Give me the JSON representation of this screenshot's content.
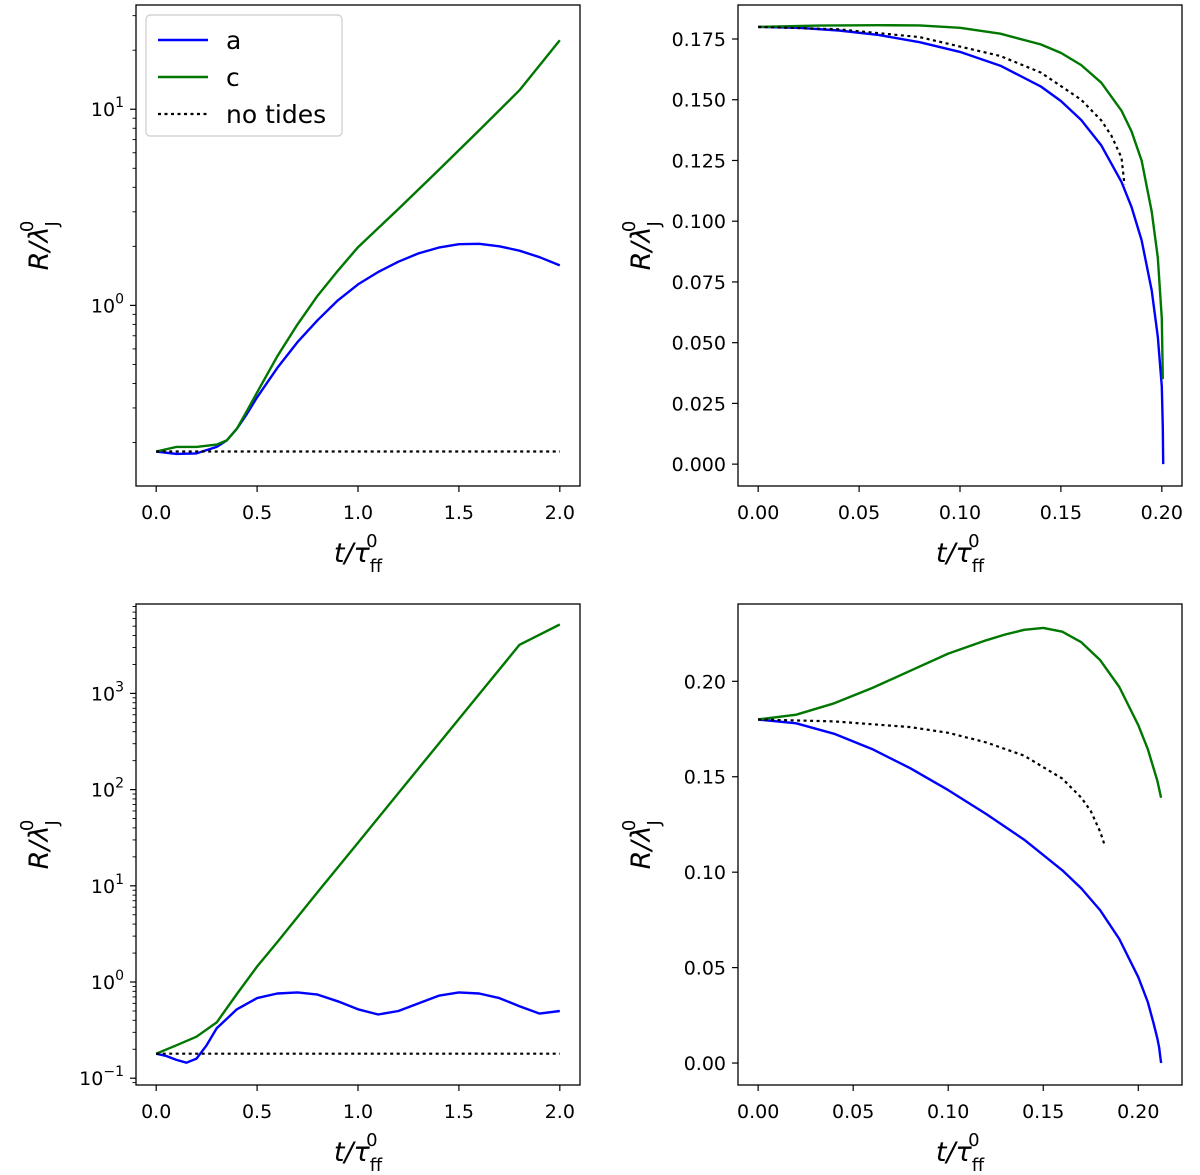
{
  "chart_data": [
    {
      "id": "top-left",
      "type": "line",
      "yscale": "log",
      "xlim": [
        -0.1,
        2.1
      ],
      "ylim": [
        0.12,
        34
      ],
      "xticks": [
        0.0,
        0.5,
        1.0,
        1.5,
        2.0
      ],
      "xtick_labels": [
        "0.0",
        "0.5",
        "1.0",
        "1.5",
        "2.0"
      ],
      "yticks": [
        1,
        10
      ],
      "ytick_labels": [
        "10^0",
        "10^1"
      ],
      "xlabel": "t/τ_ff^0",
      "ylabel": "R/λ_J^0",
      "legend": {
        "position": "top-left",
        "entries": [
          {
            "label": "a",
            "color": "#0000ff",
            "style": "solid"
          },
          {
            "label": "c",
            "color": "#007700",
            "style": "solid"
          },
          {
            "label": "no tides",
            "color": "#000000",
            "style": "dotted"
          }
        ]
      },
      "series": [
        {
          "name": "a",
          "color": "#0000ff",
          "style": "solid",
          "x": [
            0,
            0.1,
            0.2,
            0.3,
            0.35,
            0.4,
            0.45,
            0.5,
            0.6,
            0.7,
            0.8,
            0.9,
            1.0,
            1.1,
            1.2,
            1.3,
            1.4,
            1.5,
            1.6,
            1.7,
            1.8,
            1.9,
            2.0
          ],
          "y": [
            0.18,
            0.175,
            0.176,
            0.19,
            0.205,
            0.235,
            0.28,
            0.34,
            0.48,
            0.65,
            0.84,
            1.06,
            1.28,
            1.48,
            1.67,
            1.84,
            1.97,
            2.05,
            2.06,
            2.0,
            1.9,
            1.76,
            1.6
          ]
        },
        {
          "name": "c",
          "color": "#007700",
          "style": "solid",
          "x": [
            0,
            0.1,
            0.2,
            0.3,
            0.35,
            0.4,
            0.45,
            0.5,
            0.6,
            0.7,
            0.8,
            0.9,
            1.0,
            1.2,
            1.4,
            1.6,
            1.8,
            2.0
          ],
          "y": [
            0.18,
            0.19,
            0.19,
            0.195,
            0.205,
            0.235,
            0.29,
            0.36,
            0.55,
            0.8,
            1.12,
            1.5,
            1.98,
            3.1,
            4.9,
            7.8,
            12.5,
            22.5
          ]
        },
        {
          "name": "no tides",
          "color": "#000000",
          "style": "dotted",
          "x": [
            0,
            2.0
          ],
          "y": [
            0.18,
            0.18
          ]
        }
      ]
    },
    {
      "id": "top-right",
      "type": "line",
      "yscale": "linear",
      "xlim": [
        -0.01,
        0.21
      ],
      "ylim": [
        -0.009,
        0.189
      ],
      "xticks": [
        0.0,
        0.05,
        0.1,
        0.15,
        0.2
      ],
      "xtick_labels": [
        "0.00",
        "0.05",
        "0.10",
        "0.15",
        "0.20"
      ],
      "yticks": [
        0.0,
        0.025,
        0.05,
        0.075,
        0.1,
        0.125,
        0.15,
        0.175
      ],
      "ytick_labels": [
        "0.000",
        "0.025",
        "0.050",
        "0.075",
        "0.100",
        "0.125",
        "0.150",
        "0.175"
      ],
      "xlabel": "t/τ_ff^0",
      "ylabel": "R/λ_J^0",
      "series": [
        {
          "name": "a",
          "color": "#0000ff",
          "style": "solid",
          "x": [
            0,
            0.02,
            0.04,
            0.06,
            0.08,
            0.1,
            0.12,
            0.14,
            0.15,
            0.16,
            0.17,
            0.18,
            0.185,
            0.19,
            0.195,
            0.198,
            0.2,
            0.2005,
            0.2007
          ],
          "y": [
            0.18,
            0.1796,
            0.1785,
            0.1766,
            0.1737,
            0.1697,
            0.164,
            0.1555,
            0.1495,
            0.1417,
            0.1312,
            0.1162,
            0.1059,
            0.0922,
            0.0715,
            0.0525,
            0.032,
            0.015,
            0.0
          ]
        },
        {
          "name": "c",
          "color": "#007700",
          "style": "solid",
          "x": [
            0,
            0.03,
            0.06,
            0.08,
            0.1,
            0.12,
            0.14,
            0.15,
            0.16,
            0.17,
            0.18,
            0.185,
            0.19,
            0.195,
            0.198,
            0.2,
            0.2005
          ],
          "y": [
            0.18,
            0.1805,
            0.1807,
            0.1806,
            0.1796,
            0.1772,
            0.1728,
            0.1693,
            0.1643,
            0.157,
            0.1455,
            0.137,
            0.125,
            0.104,
            0.085,
            0.06,
            0.035
          ]
        },
        {
          "name": "no tides",
          "color": "#000000",
          "style": "dotted",
          "x": [
            0,
            0.04,
            0.08,
            0.12,
            0.14,
            0.16,
            0.17,
            0.175,
            0.18,
            0.1815
          ],
          "y": [
            0.18,
            0.179,
            0.1758,
            0.168,
            0.1612,
            0.15,
            0.1415,
            0.1352,
            0.1262,
            0.115
          ]
        }
      ]
    },
    {
      "id": "bottom-left",
      "type": "line",
      "yscale": "log",
      "xlim": [
        -0.1,
        2.1
      ],
      "ylim": [
        0.085,
        8500
      ],
      "xticks": [
        0.0,
        0.5,
        1.0,
        1.5,
        2.0
      ],
      "xtick_labels": [
        "0.0",
        "0.5",
        "1.0",
        "1.5",
        "2.0"
      ],
      "yticks": [
        0.1,
        1,
        10,
        100,
        1000
      ],
      "ytick_labels": [
        "10^-1",
        "10^0",
        "10^1",
        "10^2",
        "10^3"
      ],
      "xlabel": "t/τ_ff^0",
      "ylabel": "R/λ_J^0",
      "series": [
        {
          "name": "a",
          "color": "#0000ff",
          "style": "solid",
          "x": [
            0,
            0.05,
            0.1,
            0.15,
            0.2,
            0.25,
            0.3,
            0.4,
            0.5,
            0.6,
            0.7,
            0.8,
            0.9,
            1.0,
            1.1,
            1.2,
            1.3,
            1.4,
            1.5,
            1.6,
            1.7,
            1.8,
            1.9,
            2.0
          ],
          "y": [
            0.18,
            0.17,
            0.155,
            0.145,
            0.16,
            0.22,
            0.33,
            0.52,
            0.68,
            0.76,
            0.78,
            0.74,
            0.63,
            0.52,
            0.46,
            0.5,
            0.6,
            0.72,
            0.78,
            0.76,
            0.68,
            0.56,
            0.47,
            0.5
          ]
        },
        {
          "name": "c",
          "color": "#007700",
          "style": "solid",
          "x": [
            0,
            0.1,
            0.2,
            0.3,
            0.4,
            0.5,
            0.6,
            0.8,
            1.0,
            1.2,
            1.4,
            1.6,
            1.8,
            2.0
          ],
          "y": [
            0.18,
            0.22,
            0.27,
            0.38,
            0.75,
            1.45,
            2.6,
            8.6,
            28,
            92,
            300,
            980,
            3200,
            5200
          ]
        },
        {
          "name": "no tides",
          "color": "#000000",
          "style": "dotted",
          "x": [
            0,
            2.0
          ],
          "y": [
            0.18,
            0.18
          ]
        }
      ]
    },
    {
      "id": "bottom-right",
      "type": "line",
      "yscale": "linear",
      "xlim": [
        -0.0106,
        0.223
      ],
      "ylim": [
        -0.0115,
        0.2405
      ],
      "xticks": [
        0.0,
        0.05,
        0.1,
        0.15,
        0.2
      ],
      "xtick_labels": [
        "0.00",
        "0.05",
        "0.10",
        "0.15",
        "0.20"
      ],
      "yticks": [
        0.0,
        0.05,
        0.1,
        0.15,
        0.2
      ],
      "ytick_labels": [
        "0.00",
        "0.05",
        "0.10",
        "0.15",
        "0.20"
      ],
      "xlabel": "t/τ_ff^0",
      "ylabel": "R/λ_J^0",
      "series": [
        {
          "name": "a",
          "color": "#0000ff",
          "style": "solid",
          "x": [
            0,
            0.02,
            0.04,
            0.06,
            0.08,
            0.1,
            0.12,
            0.14,
            0.16,
            0.17,
            0.18,
            0.19,
            0.2,
            0.205,
            0.208,
            0.21,
            0.211,
            0.2115,
            0.212
          ],
          "y": [
            0.18,
            0.178,
            0.1725,
            0.1645,
            0.1545,
            0.143,
            0.1305,
            0.117,
            0.101,
            0.0915,
            0.08,
            0.065,
            0.045,
            0.032,
            0.021,
            0.013,
            0.008,
            0.004,
            0.0
          ]
        },
        {
          "name": "c",
          "color": "#007700",
          "style": "solid",
          "x": [
            0,
            0.02,
            0.04,
            0.06,
            0.08,
            0.1,
            0.12,
            0.13,
            0.14,
            0.15,
            0.16,
            0.17,
            0.18,
            0.19,
            0.2,
            0.205,
            0.21,
            0.212
          ],
          "y": [
            0.18,
            0.1825,
            0.1885,
            0.1965,
            0.2055,
            0.2145,
            0.2215,
            0.2245,
            0.227,
            0.228,
            0.226,
            0.2205,
            0.211,
            0.197,
            0.177,
            0.1645,
            0.148,
            0.139
          ]
        },
        {
          "name": "no tides",
          "color": "#000000",
          "style": "dotted",
          "x": [
            0,
            0.04,
            0.08,
            0.1,
            0.12,
            0.14,
            0.16,
            0.17,
            0.175,
            0.18,
            0.182
          ],
          "y": [
            0.18,
            0.179,
            0.176,
            0.173,
            0.168,
            0.161,
            0.149,
            0.139,
            0.132,
            0.121,
            0.115
          ]
        }
      ]
    }
  ]
}
